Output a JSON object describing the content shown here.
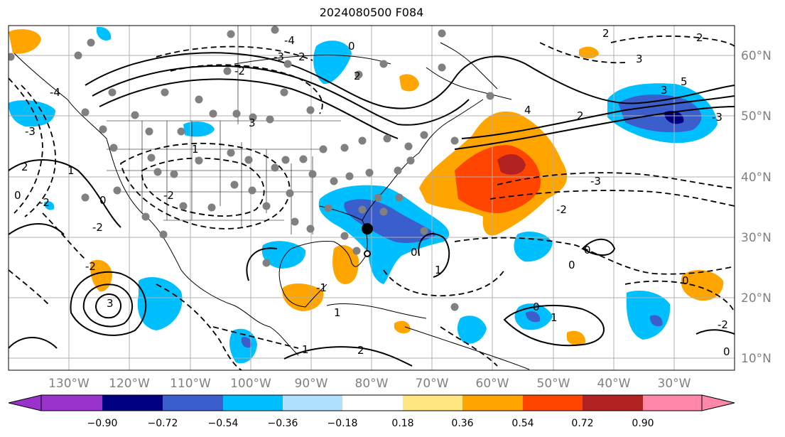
{
  "title": "2024080500 F084",
  "map": {
    "latitudes": [
      {
        "value": 60,
        "label": "60°N"
      },
      {
        "value": 50,
        "label": "50°N"
      },
      {
        "value": 40,
        "label": "40°N"
      },
      {
        "value": 30,
        "label": "30°N"
      },
      {
        "value": 20,
        "label": "20°N"
      },
      {
        "value": 10,
        "label": "10°N"
      }
    ],
    "longitudes": [
      {
        "value": -130,
        "label": "130°W"
      },
      {
        "value": -120,
        "label": "120°W"
      },
      {
        "value": -110,
        "label": "110°W"
      },
      {
        "value": -100,
        "label": "100°W"
      },
      {
        "value": -90,
        "label": "90°W"
      },
      {
        "value": -80,
        "label": "80°W"
      },
      {
        "value": -70,
        "label": "70°W"
      },
      {
        "value": -60,
        "label": "60°W"
      },
      {
        "value": -50,
        "label": "50°W"
      },
      {
        "value": -40,
        "label": "40°W"
      },
      {
        "value": -30,
        "label": "30°W"
      }
    ],
    "contour_labels": [
      "-4",
      "-3",
      "-2",
      "-1",
      "0",
      "1",
      "2",
      "3",
      "4",
      "5"
    ]
  },
  "colorbar": {
    "ticks": [
      "−0.90",
      "−0.72",
      "−0.54",
      "−0.36",
      "−0.18",
      "0.18",
      "0.36",
      "0.54",
      "0.72",
      "0.90"
    ],
    "colors": [
      "#9933cc",
      "#000080",
      "#3a5fcd",
      "#00bfff",
      "#b0e2ff",
      "#ffffff",
      "#ffe680",
      "#ffa500",
      "#ff4500",
      "#b22222",
      "#ff88aa"
    ]
  }
}
